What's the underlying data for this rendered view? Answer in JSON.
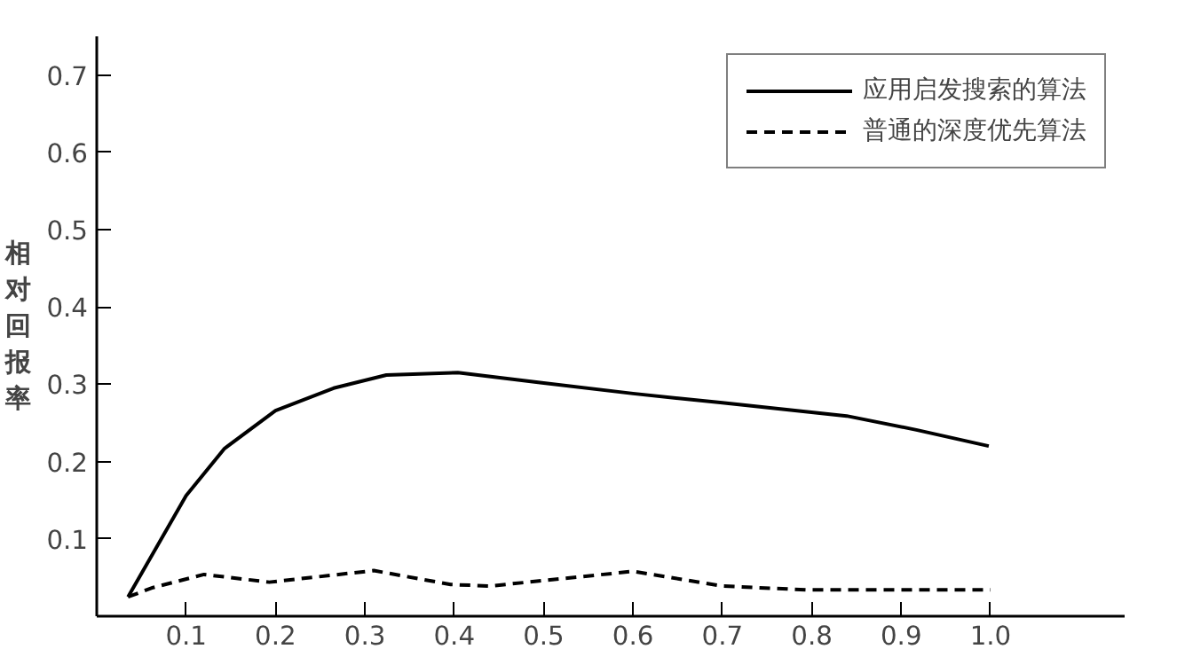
{
  "chart_data": {
    "type": "line",
    "ylabel": "相对回报率",
    "xlim": [
      0,
      1.15
    ],
    "ylim": [
      0,
      0.75
    ],
    "xticks": [
      0.1,
      0.2,
      0.3,
      0.4,
      0.5,
      0.6,
      0.7,
      0.8,
      0.9,
      {
        "value": 1.0,
        "label": "1.0"
      }
    ],
    "yticks": [
      0.1,
      0.2,
      0.3,
      0.4,
      0.5,
      0.6,
      0.7
    ],
    "grid": false,
    "legend": "top right",
    "series": [
      {
        "name": "应用启发搜索的算法",
        "color": "#000000",
        "line_style": "solid",
        "x": [
          0.035,
          0.1,
          0.143,
          0.2,
          0.265,
          0.324,
          0.404,
          0.498,
          0.6,
          0.7,
          0.839,
          0.917,
          0.998
        ],
        "values": [
          0.025,
          0.156,
          0.217,
          0.266,
          0.295,
          0.312,
          0.315,
          0.302,
          0.288,
          0.276,
          0.259,
          0.241,
          0.22
        ]
      },
      {
        "name": "普通的深度优先算法",
        "color": "#000000",
        "line_style": "dashed",
        "x": [
          0.035,
          0.063,
          0.12,
          0.193,
          0.31,
          0.396,
          0.44,
          0.6,
          0.7,
          0.795,
          1.0
        ],
        "values": [
          0.025,
          0.037,
          0.054,
          0.044,
          0.059,
          0.041,
          0.039,
          0.058,
          0.039,
          0.034,
          0.034
        ]
      }
    ]
  }
}
